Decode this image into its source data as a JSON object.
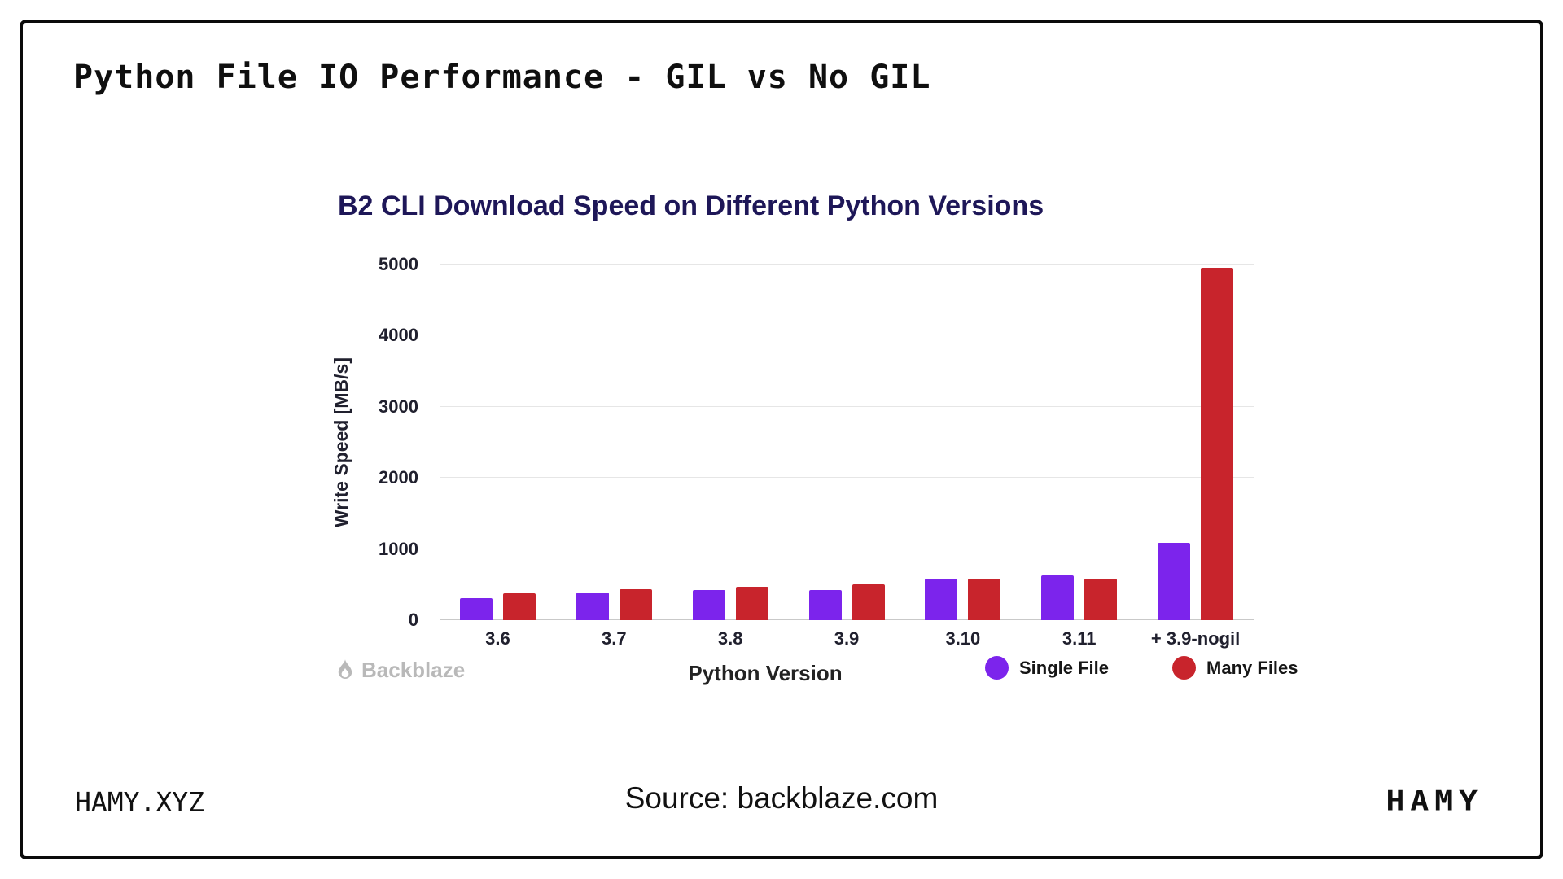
{
  "page": {
    "title": "Python File IO Performance - GIL vs No GIL",
    "footer_left": "HAMY.XYZ",
    "footer_center": "Source: backblaze.com",
    "footer_right_logo": "HAMY"
  },
  "chart_data": {
    "type": "bar",
    "title": "B2 CLI Download Speed on Different Python Versions",
    "xlabel": "Python Version",
    "ylabel": "Write Speed [MB/s]",
    "ylim": [
      0,
      5000
    ],
    "yticks": [
      0,
      1000,
      2000,
      3000,
      4000,
      5000
    ],
    "categories": [
      "3.6",
      "3.7",
      "3.8",
      "3.9",
      "3.10",
      "3.11",
      "+ 3.9-nogil"
    ],
    "series": [
      {
        "name": "Single File",
        "color": "#7c24ec",
        "values": [
          310,
          390,
          420,
          420,
          580,
          630,
          1090
        ]
      },
      {
        "name": "Many Files",
        "color": "#c8242c",
        "values": [
          380,
          430,
          470,
          500,
          580,
          580,
          4950
        ]
      }
    ],
    "grid": true,
    "legend_position": "bottom-right",
    "watermark": "Backblaze",
    "colors": {
      "single_file": "#7c24ec",
      "many_files": "#c8242c",
      "title": "#1e1758"
    }
  }
}
